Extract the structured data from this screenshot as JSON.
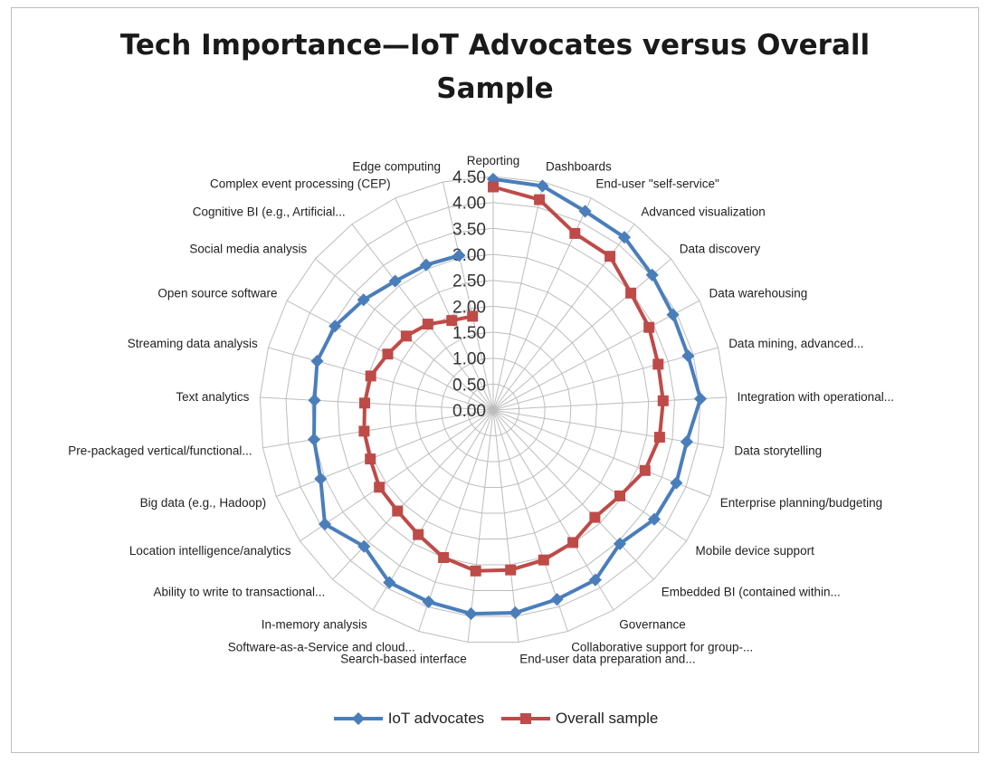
{
  "chart_data": {
    "type": "radar",
    "title_lines": [
      "Tech Importance—IoT Advocates versus Overall",
      "Sample"
    ],
    "axis_ticks": [
      "0.00",
      "0.50",
      "1.00",
      "1.50",
      "2.00",
      "2.50",
      "3.00",
      "3.50",
      "4.00",
      "4.50"
    ],
    "r_range": [
      0,
      4.5
    ],
    "categories": [
      "Reporting",
      "Dashboards",
      "End-user \"self-service\"",
      "Advanced visualization",
      "Data discovery",
      "Data warehousing",
      "Data mining, advanced...",
      "Integration with operational...",
      "Data storytelling",
      "Enterprise planning/budgeting",
      "Mobile device support",
      "Embedded BI (contained within...",
      "Governance",
      "Collaborative support for group-...",
      "End-user data preparation and...",
      "Search-based interface",
      "Software-as-a-Service and cloud...",
      "In-memory analysis",
      "Ability to write to transactional...",
      "Location intelligence/analytics",
      "Big data (e.g., Hadoop)",
      "Pre-packaged vertical/functional...",
      "Text analytics",
      "Streaming data analysis",
      "Open source software",
      "Social media analysis",
      "Cognitive BI (e.g., Artificial...",
      "Complex event processing (CEP)",
      "Edge computing"
    ],
    "series": [
      {
        "name": "IoT advocates",
        "color": "#4a7ebb",
        "marker": "diamond",
        "values": [
          4.45,
          4.42,
          4.22,
          4.18,
          4.02,
          3.92,
          3.9,
          4.0,
          3.78,
          3.8,
          3.75,
          3.55,
          3.82,
          3.85,
          3.93,
          3.95,
          3.9,
          3.88,
          3.62,
          3.92,
          3.58,
          3.5,
          3.45,
          3.52,
          3.45,
          3.28,
          3.12,
          3.08,
          3.05
        ]
      },
      {
        "name": "Overall sample",
        "color": "#be4b48",
        "marker": "square",
        "values": [
          4.3,
          4.15,
          3.75,
          3.72,
          3.48,
          3.4,
          3.3,
          3.28,
          3.25,
          3.15,
          2.95,
          2.85,
          2.98,
          3.05,
          3.1,
          3.12,
          3.0,
          2.8,
          2.68,
          2.65,
          2.55,
          2.52,
          2.48,
          2.45,
          2.3,
          2.2,
          2.08,
          1.9,
          1.85
        ]
      }
    ]
  }
}
